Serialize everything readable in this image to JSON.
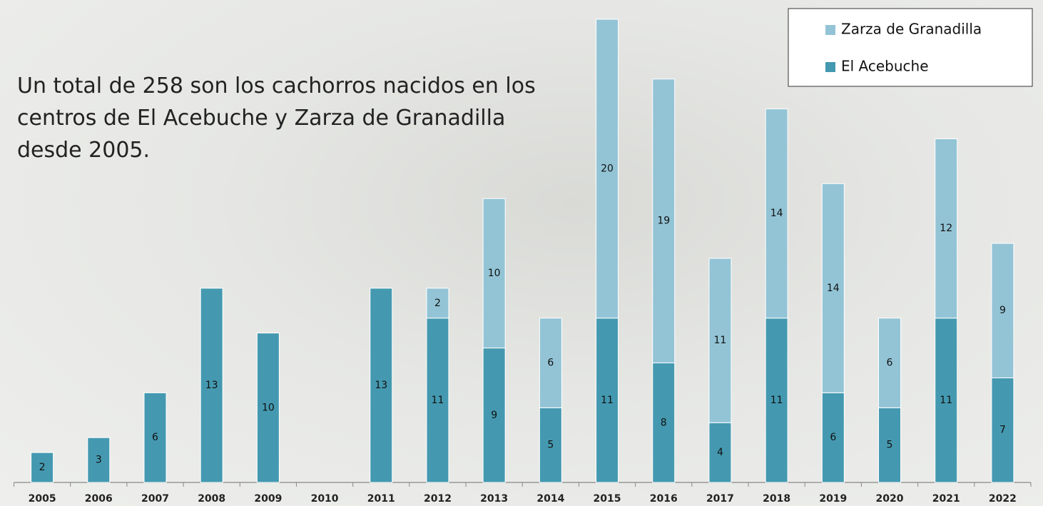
{
  "chart_data": {
    "type": "stacked-bar",
    "text": "Un total de 258 son los cachorros nacidos en los centros de El Acebuche y Zarza de Granadilla desde 2005.",
    "categories": [
      "2005",
      "2006",
      "2007",
      "2008",
      "2009",
      "2010",
      "2011",
      "2012",
      "2013",
      "2014",
      "2015",
      "2016",
      "2017",
      "2018",
      "2019",
      "2020",
      "2021",
      "2022"
    ],
    "series": [
      {
        "name": "El Acebuche",
        "color": "#4499b0",
        "values": [
          2,
          3,
          6,
          13,
          10,
          null,
          13,
          11,
          9,
          5,
          11,
          8,
          4,
          11,
          6,
          5,
          11,
          7
        ]
      },
      {
        "name": "Zarza de Granadilla",
        "color": "#93c4d6",
        "values": [
          null,
          null,
          null,
          null,
          null,
          null,
          null,
          2,
          10,
          6,
          20,
          19,
          11,
          14,
          14,
          6,
          12,
          9
        ]
      }
    ],
    "legend": "top-right"
  }
}
